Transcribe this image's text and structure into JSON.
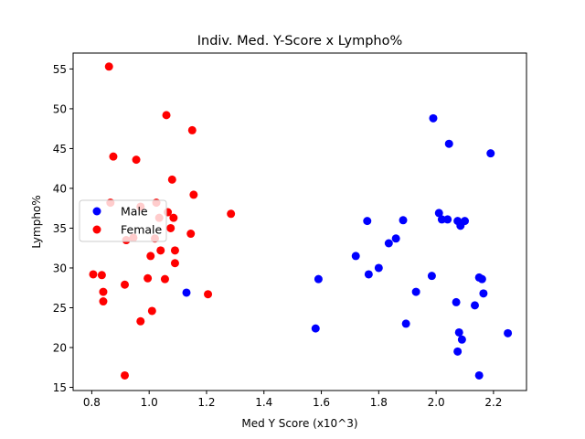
{
  "chart_data": {
    "type": "scatter",
    "title": "Indiv. Med. Y-Score x Lympho%",
    "xlabel": "Med Y Score (x10^3)",
    "ylabel": "Lympho%",
    "xlim": [
      0.735,
      2.315
    ],
    "ylim": [
      14.6,
      57.0
    ],
    "xticks": [
      0.8,
      1.0,
      1.2,
      1.4,
      1.6,
      1.8,
      2.0,
      2.2
    ],
    "xtick_labels": [
      "0.8",
      "1.0",
      "1.2",
      "1.4",
      "1.6",
      "1.8",
      "2.0",
      "2.2"
    ],
    "yticks": [
      15,
      20,
      25,
      30,
      35,
      40,
      45,
      50,
      55
    ],
    "ytick_labels": [
      "15",
      "20",
      "25",
      "30",
      "35",
      "40",
      "45",
      "50",
      "55"
    ],
    "grid": false,
    "legend": {
      "placement": "center-left"
    },
    "series": [
      {
        "name": "Male",
        "color": "#0000ff",
        "points": [
          [
            1.13,
            26.9
          ],
          [
            1.58,
            22.4
          ],
          [
            1.59,
            28.6
          ],
          [
            1.72,
            31.5
          ],
          [
            1.76,
            35.9
          ],
          [
            1.765,
            29.2
          ],
          [
            1.8,
            30.0
          ],
          [
            1.835,
            33.1
          ],
          [
            1.86,
            33.7
          ],
          [
            1.885,
            36.0
          ],
          [
            1.895,
            23.0
          ],
          [
            1.93,
            27.0
          ],
          [
            1.985,
            29.0
          ],
          [
            1.99,
            48.8
          ],
          [
            2.01,
            36.9
          ],
          [
            2.02,
            36.1
          ],
          [
            2.04,
            36.1
          ],
          [
            2.045,
            45.6
          ],
          [
            2.07,
            25.7
          ],
          [
            2.075,
            35.9
          ],
          [
            2.075,
            19.5
          ],
          [
            2.08,
            21.9
          ],
          [
            2.085,
            35.3
          ],
          [
            2.09,
            21.0
          ],
          [
            2.1,
            35.9
          ],
          [
            2.135,
            25.3
          ],
          [
            2.15,
            28.8
          ],
          [
            2.16,
            28.6
          ],
          [
            2.165,
            26.8
          ],
          [
            2.15,
            16.5
          ],
          [
            2.19,
            44.4
          ],
          [
            2.25,
            21.8
          ]
        ]
      },
      {
        "name": "Female",
        "color": "#ff0000",
        "points": [
          [
            0.805,
            29.2
          ],
          [
            0.835,
            29.1
          ],
          [
            0.84,
            27.0
          ],
          [
            0.84,
            25.8
          ],
          [
            0.86,
            55.3
          ],
          [
            0.865,
            38.2
          ],
          [
            0.875,
            44.0
          ],
          [
            0.915,
            16.5
          ],
          [
            0.915,
            27.9
          ],
          [
            0.92,
            33.5
          ],
          [
            0.945,
            33.8
          ],
          [
            0.955,
            43.6
          ],
          [
            0.97,
            37.7
          ],
          [
            0.97,
            23.3
          ],
          [
            0.995,
            28.7
          ],
          [
            1.005,
            31.5
          ],
          [
            1.01,
            24.6
          ],
          [
            1.02,
            33.7
          ],
          [
            1.025,
            38.2
          ],
          [
            1.035,
            36.3
          ],
          [
            1.04,
            32.2
          ],
          [
            1.055,
            28.6
          ],
          [
            1.06,
            49.2
          ],
          [
            1.065,
            37.0
          ],
          [
            1.075,
            35.0
          ],
          [
            1.08,
            41.1
          ],
          [
            1.085,
            36.3
          ],
          [
            1.09,
            30.6
          ],
          [
            1.09,
            32.2
          ],
          [
            1.145,
            34.3
          ],
          [
            1.15,
            47.3
          ],
          [
            1.155,
            39.2
          ],
          [
            1.205,
            26.7
          ],
          [
            1.285,
            36.8
          ]
        ]
      }
    ]
  }
}
